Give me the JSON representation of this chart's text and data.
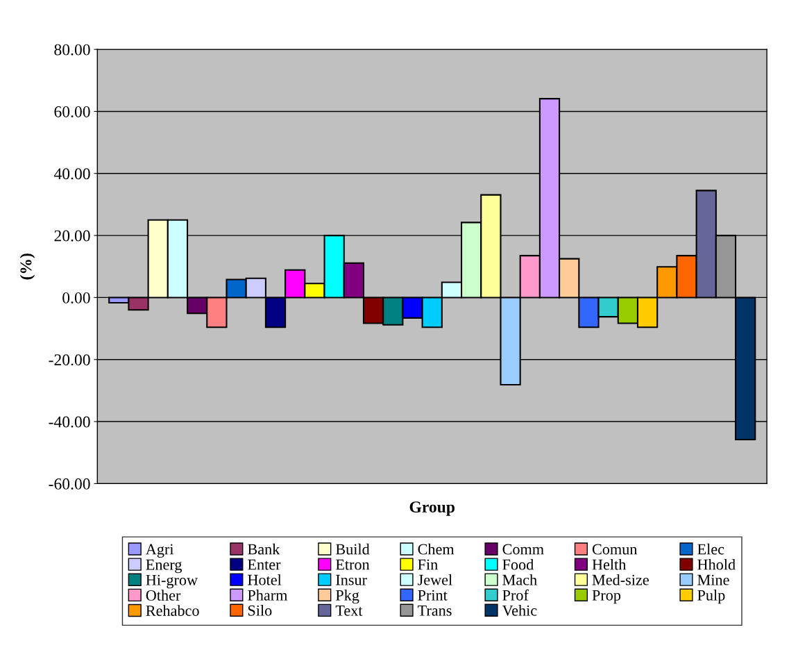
{
  "chart_data": {
    "type": "bar",
    "xlabel": "Group",
    "ylabel": "(%)",
    "categories": [
      null
    ],
    "series": [
      {
        "name": "Agri",
        "color": "#9999ff",
        "values": [
          -1.7
        ]
      },
      {
        "name": "Bank",
        "color": "#993366",
        "values": [
          -4.0
        ]
      },
      {
        "name": "Build",
        "color": "#ffffcc",
        "values": [
          25.0
        ]
      },
      {
        "name": "Chem",
        "color": "#ccffff",
        "values": [
          25.0
        ]
      },
      {
        "name": "Comm",
        "color": "#660066",
        "values": [
          -5.1
        ]
      },
      {
        "name": "Comun",
        "color": "#ff8080",
        "values": [
          -9.6
        ]
      },
      {
        "name": "Elec",
        "color": "#0066cc",
        "values": [
          5.8
        ]
      },
      {
        "name": "Energ",
        "color": "#ccccff",
        "values": [
          6.2
        ]
      },
      {
        "name": "Enter",
        "color": "#000080",
        "values": [
          -9.6
        ]
      },
      {
        "name": "Etron",
        "color": "#ff00ff",
        "values": [
          8.9
        ]
      },
      {
        "name": "Fin",
        "color": "#ffff00",
        "values": [
          4.5
        ]
      },
      {
        "name": "Food",
        "color": "#00ffff",
        "values": [
          20.0
        ]
      },
      {
        "name": "Helth",
        "color": "#800080",
        "values": [
          11.1
        ]
      },
      {
        "name": "Hhold",
        "color": "#800000",
        "values": [
          -8.3
        ]
      },
      {
        "name": "Hi-grow",
        "color": "#008080",
        "values": [
          -8.8
        ]
      },
      {
        "name": "Hotel",
        "color": "#0000ff",
        "values": [
          -6.6
        ]
      },
      {
        "name": "Insur",
        "color": "#00ccff",
        "values": [
          -9.6
        ]
      },
      {
        "name": "Jewel",
        "color": "#ccfffe",
        "values": [
          4.9
        ]
      },
      {
        "name": "Mach",
        "color": "#ccffcc",
        "values": [
          24.2
        ]
      },
      {
        "name": "Med-size",
        "color": "#ffff99",
        "values": [
          33.1
        ]
      },
      {
        "name": "Mine",
        "color": "#99ccff",
        "values": [
          -28.1
        ]
      },
      {
        "name": "Other",
        "color": "#ff99cc",
        "values": [
          13.5
        ]
      },
      {
        "name": "Pharm",
        "color": "#cc99ff",
        "values": [
          64.1
        ]
      },
      {
        "name": "Pkg",
        "color": "#ffcc99",
        "values": [
          12.5
        ]
      },
      {
        "name": "Print",
        "color": "#3366ff",
        "values": [
          -9.6
        ]
      },
      {
        "name": "Prof",
        "color": "#33cccc",
        "values": [
          -6.2
        ]
      },
      {
        "name": "Prop",
        "color": "#99cc00",
        "values": [
          -8.3
        ]
      },
      {
        "name": "Pulp",
        "color": "#ffcc00",
        "values": [
          -9.6
        ]
      },
      {
        "name": "Rehabco",
        "color": "#ff9900",
        "values": [
          9.9
        ]
      },
      {
        "name": "Silo",
        "color": "#ff6600",
        "values": [
          13.5
        ]
      },
      {
        "name": "Text",
        "color": "#666699",
        "values": [
          34.5
        ]
      },
      {
        "name": "Trans",
        "color": "#969696",
        "values": [
          20.0
        ]
      },
      {
        "name": "Vehic",
        "color": "#003366",
        "values": [
          -45.8
        ]
      }
    ],
    "ylim": [
      -60,
      80
    ],
    "yticks": [
      {
        "value": -60,
        "label": "-60.00"
      },
      {
        "value": -40,
        "label": "-40.00"
      },
      {
        "value": -20,
        "label": "-20.00"
      },
      {
        "value": 0,
        "label": "0.00"
      },
      {
        "value": 20,
        "label": "20.00"
      },
      {
        "value": 40,
        "label": "40.00"
      },
      {
        "value": 60,
        "label": "60.00"
      },
      {
        "value": 80,
        "label": "80.00"
      }
    ],
    "grid": "y",
    "legend": "bottom",
    "tick_labels": "y"
  }
}
